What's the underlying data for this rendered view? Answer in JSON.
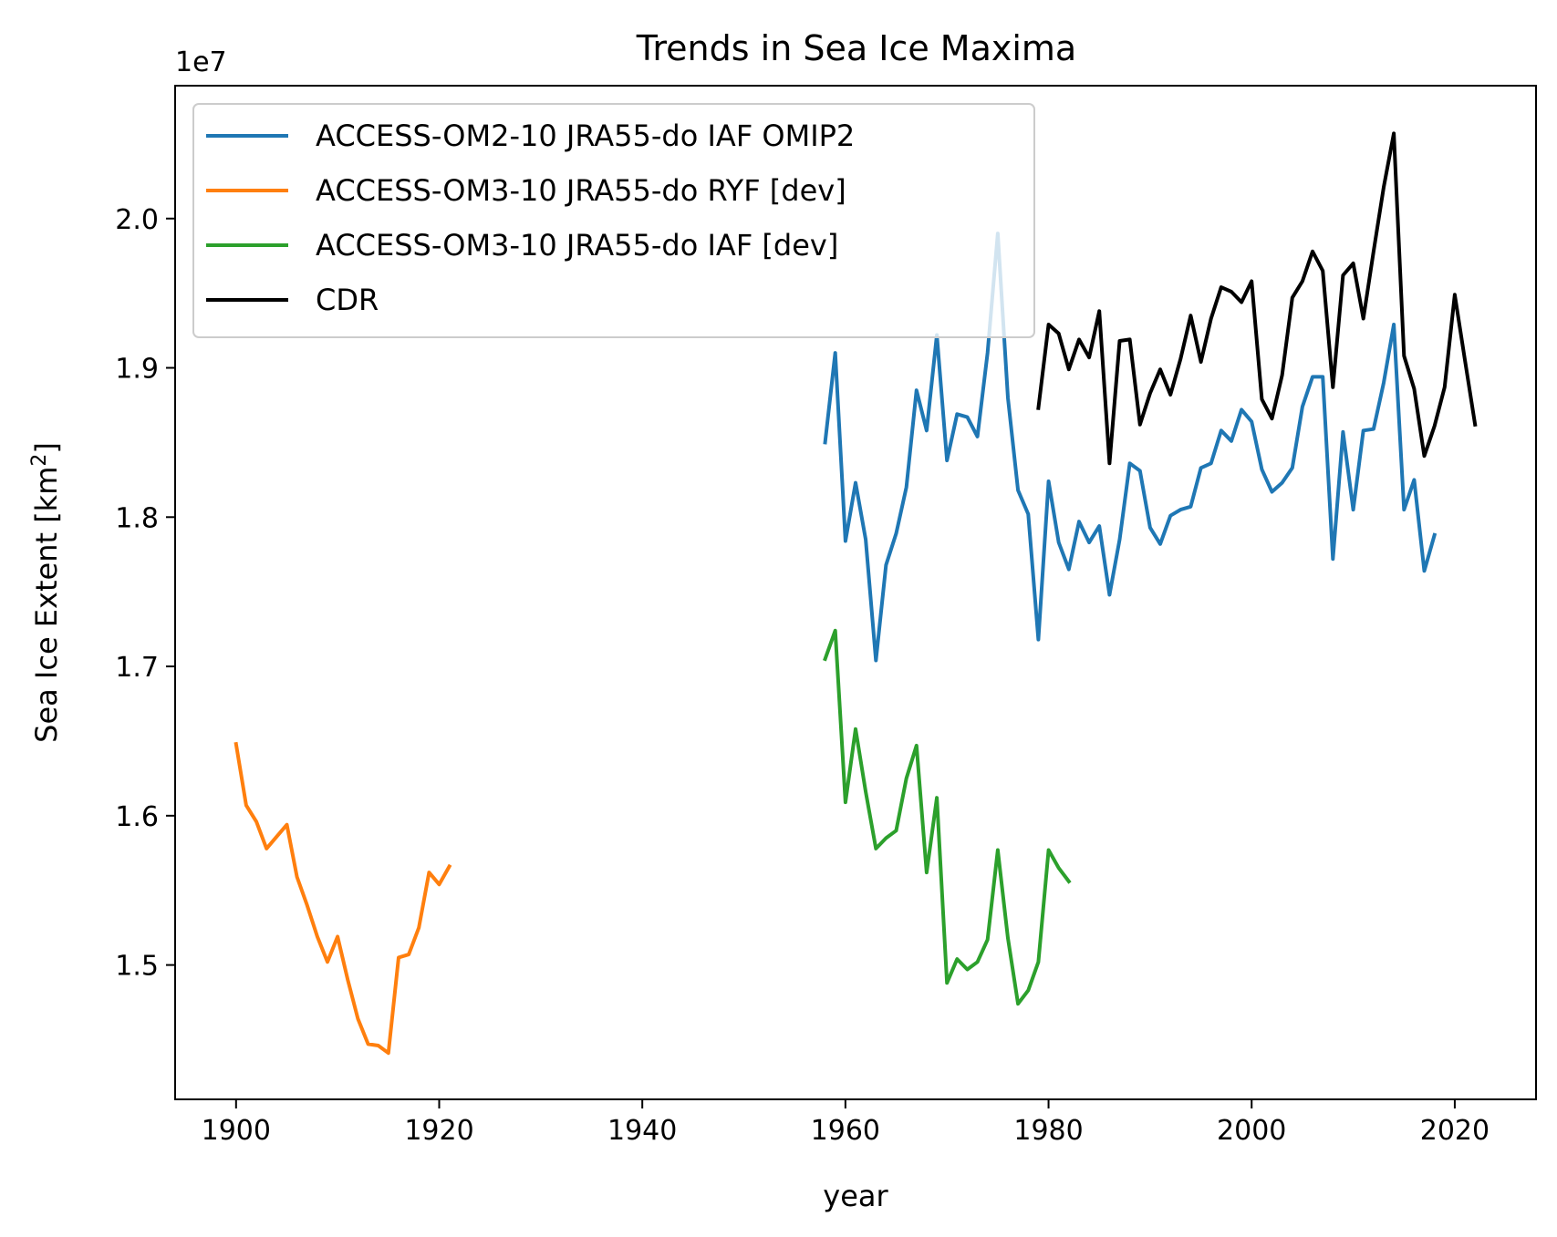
{
  "chart_data": {
    "type": "line",
    "title": "Trends in Sea Ice Maxima",
    "xlabel": "year",
    "ylabel": "Sea Ice Extent [km",
    "ylabel_sup": "2",
    "ylabel_end": "]",
    "y_offset_text": "1e7",
    "xlim": [
      1894,
      2028
    ],
    "ylim": [
      1.41,
      2.089
    ],
    "x_ticks": [
      1900,
      1920,
      1940,
      1960,
      1980,
      2000,
      2020
    ],
    "x_tick_labels": [
      "1900",
      "1920",
      "1940",
      "1960",
      "1980",
      "2000",
      "2020"
    ],
    "y_ticks": [
      1.5,
      1.6,
      1.7,
      1.8,
      1.9,
      2.0
    ],
    "y_tick_labels": [
      "1.5",
      "1.6",
      "1.7",
      "1.8",
      "1.9",
      "2.0"
    ],
    "grid": false,
    "legend_position": "top-left",
    "series": [
      {
        "name": "ACCESS-OM2-10 JRA55-do IAF OMIP2",
        "color": "#1f77b4",
        "x": [
          1958,
          1959,
          1960,
          1961,
          1962,
          1963,
          1964,
          1965,
          1966,
          1967,
          1968,
          1969,
          1970,
          1971,
          1972,
          1973,
          1974,
          1975,
          1976,
          1977,
          1978,
          1979,
          1980,
          1981,
          1982,
          1983,
          1984,
          1985,
          1986,
          1987,
          1988,
          1989,
          1990,
          1991,
          1992,
          1993,
          1994,
          1995,
          1996,
          1997,
          1998,
          1999,
          2000,
          2001,
          2002,
          2003,
          2004,
          2005,
          2006,
          2007,
          2008,
          2009,
          2010,
          2011,
          2012,
          2013,
          2014,
          2015,
          2016,
          2017,
          2018
        ],
        "y": [
          1.85,
          1.91,
          1.784,
          1.823,
          1.785,
          1.704,
          1.768,
          1.789,
          1.82,
          1.885,
          1.858,
          1.922,
          1.838,
          1.869,
          1.867,
          1.854,
          1.91,
          1.99,
          1.88,
          1.818,
          1.802,
          1.718,
          1.824,
          1.783,
          1.765,
          1.797,
          1.783,
          1.794,
          1.748,
          1.785,
          1.836,
          1.831,
          1.793,
          1.782,
          1.801,
          1.805,
          1.807,
          1.833,
          1.836,
          1.858,
          1.851,
          1.872,
          1.864,
          1.832,
          1.817,
          1.823,
          1.833,
          1.874,
          1.894,
          1.894,
          1.772,
          1.857,
          1.805,
          1.858,
          1.859,
          1.89,
          1.929,
          1.805,
          1.825,
          1.764,
          1.788
        ]
      },
      {
        "name": "ACCESS-OM3-10 JRA55-do RYF [dev]",
        "color": "#ff7f0e",
        "x": [
          1900,
          1901,
          1902,
          1903,
          1904,
          1905,
          1906,
          1907,
          1908,
          1909,
          1910,
          1911,
          1912,
          1913,
          1914,
          1915,
          1916,
          1917,
          1918,
          1919,
          1920,
          1921
        ],
        "y": [
          1.648,
          1.607,
          1.596,
          1.578,
          1.586,
          1.594,
          1.559,
          1.54,
          1.519,
          1.502,
          1.519,
          1.49,
          1.464,
          1.447,
          1.446,
          1.441,
          1.505,
          1.507,
          1.525,
          1.562,
          1.554,
          1.566
        ]
      },
      {
        "name": "ACCESS-OM3-10 JRA55-do IAF [dev]",
        "color": "#2ca02c",
        "x": [
          1958,
          1959,
          1960,
          1961,
          1962,
          1963,
          1964,
          1965,
          1966,
          1967,
          1968,
          1969,
          1970,
          1971,
          1972,
          1973,
          1974,
          1975,
          1976,
          1977,
          1978,
          1979,
          1980,
          1981,
          1982
        ],
        "y": [
          1.705,
          1.724,
          1.609,
          1.658,
          1.616,
          1.578,
          1.585,
          1.59,
          1.625,
          1.647,
          1.562,
          1.612,
          1.488,
          1.504,
          1.497,
          1.502,
          1.517,
          1.577,
          1.518,
          1.474,
          1.483,
          1.502,
          1.577,
          1.565,
          1.556
        ]
      },
      {
        "name": "CDR",
        "color": "#000000",
        "x": [
          1979,
          1980,
          1981,
          1982,
          1983,
          1984,
          1985,
          1986,
          1987,
          1988,
          1989,
          1990,
          1991,
          1992,
          1993,
          1994,
          1995,
          1996,
          1997,
          1998,
          1999,
          2000,
          2001,
          2002,
          2003,
          2004,
          2005,
          2006,
          2007,
          2008,
          2009,
          2010,
          2011,
          2012,
          2013,
          2014,
          2015,
          2016,
          2017,
          2018,
          2019,
          2020,
          2021,
          2022
        ],
        "y": [
          1.873,
          1.929,
          1.923,
          1.899,
          1.919,
          1.907,
          1.938,
          1.836,
          1.918,
          1.919,
          1.862,
          1.883,
          1.899,
          1.882,
          1.906,
          1.935,
          1.904,
          1.933,
          1.954,
          1.951,
          1.944,
          1.958,
          1.879,
          1.866,
          1.895,
          1.947,
          1.958,
          1.978,
          1.965,
          1.887,
          1.962,
          1.97,
          1.933,
          1.978,
          2.021,
          2.057,
          1.908,
          1.886,
          1.841,
          1.861,
          1.887,
          1.949,
          1.905,
          1.862
        ]
      }
    ]
  }
}
